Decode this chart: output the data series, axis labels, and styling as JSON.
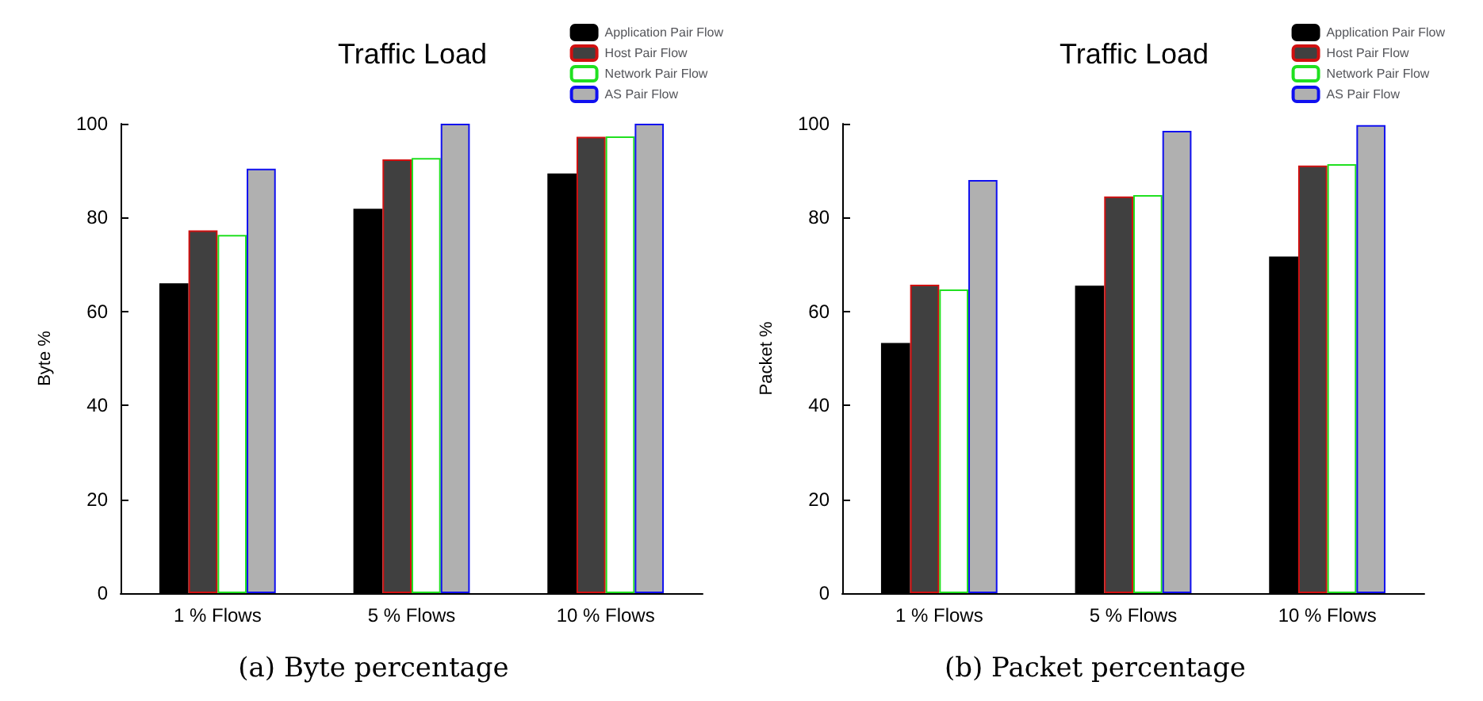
{
  "chart_data": [
    {
      "type": "bar",
      "title": "Traffic Load",
      "ylabel": "Byte %",
      "categories": [
        "1 % Flows",
        "5 % Flows",
        "10 % Flows"
      ],
      "series": [
        {
          "name": "Application Pair Flow",
          "color": "#000000",
          "values": [
            66,
            81.9,
            89.4
          ]
        },
        {
          "name": "Host Pair Flow",
          "color": "#404040",
          "values": [
            77.3,
            92.4,
            97.2
          ]
        },
        {
          "name": "Network Pair Flow",
          "color": "#ffffff",
          "values": [
            76.3,
            92.7,
            97.3
          ]
        },
        {
          "name": "AS Pair Flow",
          "color": "#b0b0b0",
          "values": [
            90.4,
            100,
            100
          ]
        }
      ],
      "ylim": [
        0,
        100
      ],
      "yticks": [
        0,
        20,
        40,
        60,
        80,
        100
      ],
      "grid": false,
      "legend": "top right",
      "annotations": [
        "(a) Byte percentage"
      ]
    },
    {
      "type": "bar",
      "title": "Traffic Load",
      "ylabel": "Packet %",
      "categories": [
        "1 % Flows",
        "5 % Flows",
        "10 % Flows"
      ],
      "series": [
        {
          "name": "Application Pair Flow",
          "color": "#000000",
          "values": [
            53.3,
            65.5,
            71.7
          ]
        },
        {
          "name": "Host Pair Flow",
          "color": "#404040",
          "values": [
            65.7,
            84.5,
            91.1
          ]
        },
        {
          "name": "Network Pair Flow",
          "color": "#ffffff",
          "values": [
            64.7,
            84.8,
            91.4
          ]
        },
        {
          "name": "AS Pair Flow",
          "color": "#b0b0b0",
          "values": [
            88,
            98.5,
            99.7
          ]
        }
      ],
      "ylim": [
        0,
        100
      ],
      "yticks": [
        0,
        20,
        40,
        60,
        80,
        100
      ],
      "grid": false,
      "legend": "top right",
      "annotations": [
        "(b) Packet percentage"
      ]
    }
  ]
}
